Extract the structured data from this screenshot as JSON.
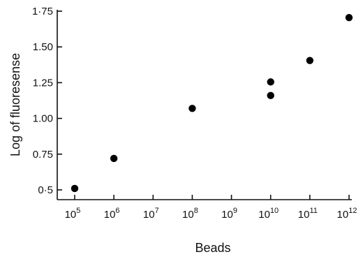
{
  "chart_data": {
    "type": "scatter",
    "title": "",
    "xlabel": "Beads",
    "ylabel": "Log of fluoresense",
    "x_scale": "log10",
    "xlim": [
      100000,
      1000000000000
    ],
    "ylim": [
      0.5,
      1.75
    ],
    "x_ticks": [
      {
        "value": 100000,
        "base": "10",
        "exp": "5"
      },
      {
        "value": 1000000,
        "base": "10",
        "exp": "6"
      },
      {
        "value": 10000000,
        "base": "10",
        "exp": "7"
      },
      {
        "value": 100000000,
        "base": "10",
        "exp": "8"
      },
      {
        "value": 1000000000,
        "base": "10",
        "exp": "9"
      },
      {
        "value": 10000000000,
        "base": "10",
        "exp": "10"
      },
      {
        "value": 100000000000,
        "base": "10",
        "exp": "11"
      },
      {
        "value": 1000000000000,
        "base": "10",
        "exp": "12"
      }
    ],
    "y_ticks": [
      {
        "value": 0.5,
        "label": "0·5"
      },
      {
        "value": 0.75,
        "label": "0.75"
      },
      {
        "value": 1.0,
        "label": "1.00"
      },
      {
        "value": 1.25,
        "label": "1.25"
      },
      {
        "value": 1.5,
        "label": "1.50"
      },
      {
        "value": 1.75,
        "label": "1·75"
      }
    ],
    "grid": false,
    "points": [
      {
        "x": 100000,
        "y": 0.51
      },
      {
        "x": 1000000,
        "y": 0.72
      },
      {
        "x": 100000000,
        "y": 1.07
      },
      {
        "x": 10000000000,
        "y": 1.16
      },
      {
        "x": 10000000000,
        "y": 1.255
      },
      {
        "x": 100000000000,
        "y": 1.405
      },
      {
        "x": 1000000000000,
        "y": 1.705
      }
    ]
  }
}
